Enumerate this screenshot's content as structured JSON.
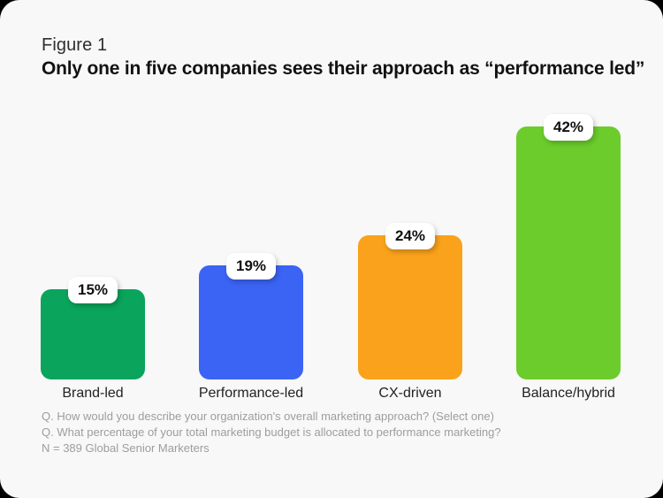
{
  "figure": {
    "label": "Figure 1",
    "title": "Only one in five companies sees their approach as “performance led”"
  },
  "chart_data": {
    "type": "bar",
    "title": "Only one in five companies sees their approach as “performance led”",
    "categories": [
      "Brand-led",
      "Performance-led",
      "CX-driven",
      "Balance/hybrid"
    ],
    "values": [
      15,
      19,
      24,
      42
    ],
    "value_labels": [
      "15%",
      "19%",
      "24%",
      "42%"
    ],
    "bar_colors": [
      "#0aa45c",
      "#3b64f5",
      "#faa21b",
      "#6bcc2b"
    ],
    "xlabel": "",
    "ylabel": "",
    "ylim": [
      0,
      45
    ],
    "grid": false,
    "legend": "none",
    "value_label_style": "white rounded badge overlapping bar top"
  },
  "footnotes": {
    "line1": "Q. How would you describe your organization's overall marketing approach? (Select one)",
    "line2": "Q. What percentage of your total marketing budget is allocated to performance marketing?",
    "line3": "N = 389 Global Senior Marketers"
  },
  "colors": {
    "card_background": "#f8f8f8",
    "outside_background": "#000000",
    "title_text": "#121212",
    "figure_label_text": "#2e2e2e",
    "category_text": "#222222",
    "footnote_text": "#9d9d9d",
    "badge_background": "#ffffff",
    "badge_text": "#111111"
  }
}
